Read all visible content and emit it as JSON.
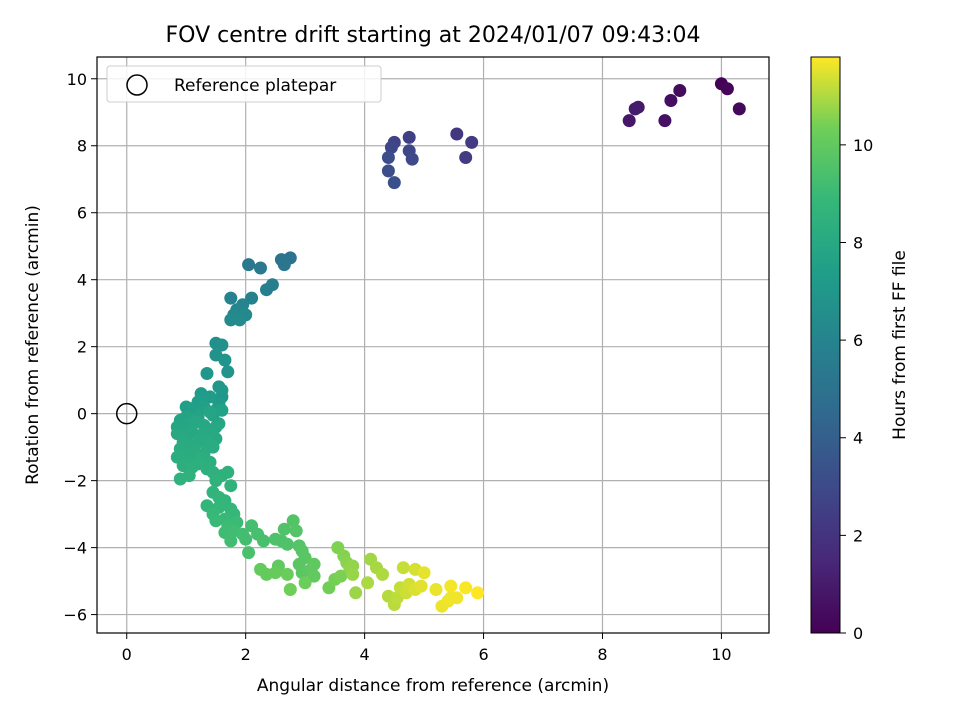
{
  "chart_data": {
    "type": "scatter",
    "title": "FOV centre drift starting at 2024/01/07 09:43:04",
    "xlabel": "Angular distance from reference (arcmin)",
    "ylabel": "Rotation from reference (arcmin)",
    "xlim": [
      -0.5,
      10.8
    ],
    "ylim": [
      -6.55,
      10.65
    ],
    "xticks": [
      0,
      2,
      4,
      6,
      8,
      10
    ],
    "yticks": [
      -6,
      -4,
      -2,
      0,
      2,
      4,
      6,
      8,
      10
    ],
    "grid": true,
    "legend": {
      "placement": "top-left",
      "label": "Reference platepar"
    },
    "reference_point": {
      "x": 0,
      "y": 0
    },
    "colorbar": {
      "label": "Hours from first FF file",
      "colormap": "viridis",
      "range": [
        0,
        11.8
      ],
      "ticks": [
        0,
        2,
        4,
        6,
        8,
        10
      ]
    },
    "points": [
      [
        10.0,
        9.85,
        0.1
      ],
      [
        10.1,
        9.7,
        0.2
      ],
      [
        10.3,
        9.1,
        0.3
      ],
      [
        9.3,
        9.65,
        0.4
      ],
      [
        9.15,
        9.35,
        0.5
      ],
      [
        9.05,
        8.75,
        0.6
      ],
      [
        8.45,
        8.75,
        0.8
      ],
      [
        8.6,
        9.15,
        0.9
      ],
      [
        8.55,
        9.1,
        1.0
      ],
      [
        5.55,
        8.35,
        2.2
      ],
      [
        5.8,
        8.1,
        2.3
      ],
      [
        5.7,
        7.65,
        2.4
      ],
      [
        4.75,
        8.25,
        2.6
      ],
      [
        4.5,
        8.1,
        2.7
      ],
      [
        4.45,
        7.95,
        2.8
      ],
      [
        4.75,
        7.85,
        2.9
      ],
      [
        4.8,
        7.6,
        3.0
      ],
      [
        4.4,
        7.65,
        3.1
      ],
      [
        4.4,
        7.25,
        3.2
      ],
      [
        4.5,
        6.9,
        3.3
      ],
      [
        2.75,
        4.65,
        5.0
      ],
      [
        2.6,
        4.6,
        5.1
      ],
      [
        2.65,
        4.45,
        5.2
      ],
      [
        2.05,
        4.45,
        5.3
      ],
      [
        2.25,
        4.35,
        5.4
      ],
      [
        2.45,
        3.85,
        5.6
      ],
      [
        2.35,
        3.7,
        5.7
      ],
      [
        2.1,
        3.45,
        5.8
      ],
      [
        1.75,
        3.45,
        5.9
      ],
      [
        1.95,
        3.25,
        6.0
      ],
      [
        1.85,
        3.1,
        6.1
      ],
      [
        1.8,
        2.95,
        6.2
      ],
      [
        2.0,
        2.95,
        6.25
      ],
      [
        1.9,
        2.8,
        6.3
      ],
      [
        1.75,
        2.8,
        6.35
      ],
      [
        1.5,
        2.1,
        6.6
      ],
      [
        1.6,
        2.05,
        6.7
      ],
      [
        1.5,
        1.75,
        6.8
      ],
      [
        1.65,
        1.6,
        6.85
      ],
      [
        1.7,
        1.25,
        6.9
      ],
      [
        1.35,
        1.2,
        6.95
      ],
      [
        1.55,
        0.8,
        7.0
      ],
      [
        1.6,
        0.7,
        7.05
      ],
      [
        1.6,
        0.5,
        7.1
      ],
      [
        1.55,
        0.3,
        7.15
      ],
      [
        1.25,
        0.6,
        7.2
      ],
      [
        1.4,
        0.5,
        7.25
      ],
      [
        1.3,
        0.45,
        7.3
      ],
      [
        1.2,
        0.35,
        7.35
      ],
      [
        1.5,
        0.1,
        7.4
      ],
      [
        1.0,
        0.2,
        7.45
      ],
      [
        1.1,
        0.15,
        7.5
      ],
      [
        1.3,
        0.2,
        7.55
      ],
      [
        1.6,
        0.1,
        7.6
      ],
      [
        1.45,
        -0.05,
        7.65
      ],
      [
        0.9,
        -0.2,
        7.7
      ],
      [
        1.0,
        -0.1,
        7.72
      ],
      [
        1.2,
        -0.1,
        7.75
      ],
      [
        1.4,
        0.05,
        7.78
      ],
      [
        1.55,
        -0.3,
        7.8
      ],
      [
        0.85,
        -0.4,
        7.82
      ],
      [
        0.95,
        -0.5,
        7.84
      ],
      [
        1.05,
        -0.3,
        7.86
      ],
      [
        1.15,
        -0.25,
        7.88
      ],
      [
        1.3,
        -0.35,
        7.9
      ],
      [
        1.5,
        -0.4,
        7.92
      ],
      [
        0.85,
        -0.6,
        7.94
      ],
      [
        1.0,
        -0.7,
        7.96
      ],
      [
        1.1,
        -0.55,
        7.98
      ],
      [
        1.25,
        -0.65,
        8.0
      ],
      [
        1.4,
        -0.6,
        8.02
      ],
      [
        1.5,
        -0.75,
        8.04
      ],
      [
        0.95,
        -0.85,
        8.06
      ],
      [
        1.05,
        -0.95,
        8.08
      ],
      [
        1.2,
        -0.85,
        8.1
      ],
      [
        1.35,
        -0.9,
        8.12
      ],
      [
        1.45,
        -1.0,
        8.14
      ],
      [
        0.9,
        -1.05,
        8.16
      ],
      [
        1.0,
        -1.2,
        8.18
      ],
      [
        1.15,
        -1.15,
        8.2
      ],
      [
        1.3,
        -1.2,
        8.22
      ],
      [
        0.85,
        -1.3,
        8.24
      ],
      [
        1.0,
        -1.4,
        8.26
      ],
      [
        1.15,
        -1.45,
        8.28
      ],
      [
        1.25,
        -1.35,
        8.3
      ],
      [
        1.4,
        -1.45,
        8.32
      ],
      [
        0.95,
        -1.55,
        8.34
      ],
      [
        1.1,
        -1.6,
        8.36
      ],
      [
        1.2,
        -1.5,
        8.38
      ],
      [
        1.35,
        -1.65,
        8.4
      ],
      [
        1.45,
        -1.75,
        8.42
      ],
      [
        1.6,
        -1.85,
        8.45
      ],
      [
        1.7,
        -1.75,
        8.48
      ],
      [
        1.05,
        -1.85,
        8.5
      ],
      [
        0.9,
        -1.95,
        8.52
      ],
      [
        1.5,
        -2.0,
        8.55
      ],
      [
        1.75,
        -2.15,
        8.58
      ],
      [
        1.45,
        -2.35,
        8.62
      ],
      [
        1.55,
        -2.5,
        8.66
      ],
      [
        1.65,
        -2.6,
        8.7
      ],
      [
        1.35,
        -2.75,
        8.74
      ],
      [
        1.55,
        -2.8,
        8.78
      ],
      [
        1.75,
        -2.85,
        8.82
      ],
      [
        1.8,
        -3.0,
        8.86
      ],
      [
        1.45,
        -3.0,
        8.9
      ],
      [
        1.65,
        -3.15,
        8.94
      ],
      [
        1.5,
        -3.2,
        8.98
      ],
      [
        1.85,
        -3.25,
        9.02
      ],
      [
        1.7,
        -3.35,
        9.06
      ],
      [
        1.65,
        -3.55,
        9.1
      ],
      [
        1.8,
        -3.5,
        9.14
      ],
      [
        1.75,
        -3.8,
        9.18
      ],
      [
        1.95,
        -3.6,
        9.22
      ],
      [
        2.0,
        -3.75,
        9.26
      ],
      [
        2.1,
        -3.35,
        9.3
      ],
      [
        2.2,
        -3.6,
        9.34
      ],
      [
        2.3,
        -3.8,
        9.38
      ],
      [
        2.05,
        -4.15,
        9.42
      ],
      [
        2.5,
        -3.75,
        9.46
      ],
      [
        2.6,
        -3.8,
        9.5
      ],
      [
        2.7,
        -3.9,
        9.54
      ],
      [
        2.65,
        -3.45,
        9.58
      ],
      [
        2.8,
        -3.2,
        9.62
      ],
      [
        2.85,
        -3.5,
        9.66
      ],
      [
        2.9,
        -3.95,
        9.7
      ],
      [
        2.95,
        -4.1,
        9.74
      ],
      [
        3.0,
        -4.3,
        9.78
      ],
      [
        2.9,
        -4.5,
        9.82
      ],
      [
        2.95,
        -4.75,
        9.86
      ],
      [
        3.1,
        -4.65,
        9.9
      ],
      [
        3.15,
        -4.5,
        9.94
      ],
      [
        3.15,
        -4.85,
        9.98
      ],
      [
        2.55,
        -4.55,
        10.0
      ],
      [
        2.25,
        -4.65,
        10.05
      ],
      [
        2.35,
        -4.8,
        10.1
      ],
      [
        2.5,
        -4.75,
        10.15
      ],
      [
        2.7,
        -4.8,
        10.2
      ],
      [
        3.0,
        -5.05,
        10.25
      ],
      [
        2.75,
        -5.25,
        10.3
      ],
      [
        3.4,
        -5.2,
        10.35
      ],
      [
        3.5,
        -4.95,
        10.4
      ],
      [
        3.6,
        -4.85,
        10.45
      ],
      [
        3.55,
        -4.0,
        10.5
      ],
      [
        3.65,
        -4.25,
        10.55
      ],
      [
        3.7,
        -4.45,
        10.6
      ],
      [
        3.75,
        -4.6,
        10.65
      ],
      [
        3.8,
        -4.55,
        10.7
      ],
      [
        3.8,
        -4.8,
        10.75
      ],
      [
        3.85,
        -5.35,
        10.8
      ],
      [
        4.1,
        -4.35,
        10.85
      ],
      [
        4.2,
        -4.6,
        10.9
      ],
      [
        4.05,
        -5.05,
        10.95
      ],
      [
        4.3,
        -4.8,
        11.0
      ],
      [
        4.4,
        -5.45,
        11.05
      ],
      [
        4.5,
        -5.7,
        11.1
      ],
      [
        4.55,
        -5.5,
        11.15
      ],
      [
        4.6,
        -5.2,
        11.2
      ],
      [
        4.65,
        -4.6,
        11.25
      ],
      [
        4.7,
        -5.35,
        11.3
      ],
      [
        4.75,
        -5.1,
        11.35
      ],
      [
        4.85,
        -4.65,
        11.4
      ],
      [
        4.85,
        -5.25,
        11.45
      ],
      [
        4.95,
        -5.15,
        11.5
      ],
      [
        5.0,
        -4.75,
        11.55
      ],
      [
        5.2,
        -5.25,
        11.6
      ],
      [
        5.3,
        -5.75,
        11.62
      ],
      [
        5.4,
        -5.6,
        11.64
      ],
      [
        5.45,
        -5.5,
        11.66
      ],
      [
        5.55,
        -5.5,
        11.68
      ],
      [
        5.45,
        -5.15,
        11.7
      ],
      [
        5.7,
        -5.2,
        11.75
      ],
      [
        5.9,
        -5.35,
        11.8
      ]
    ]
  }
}
